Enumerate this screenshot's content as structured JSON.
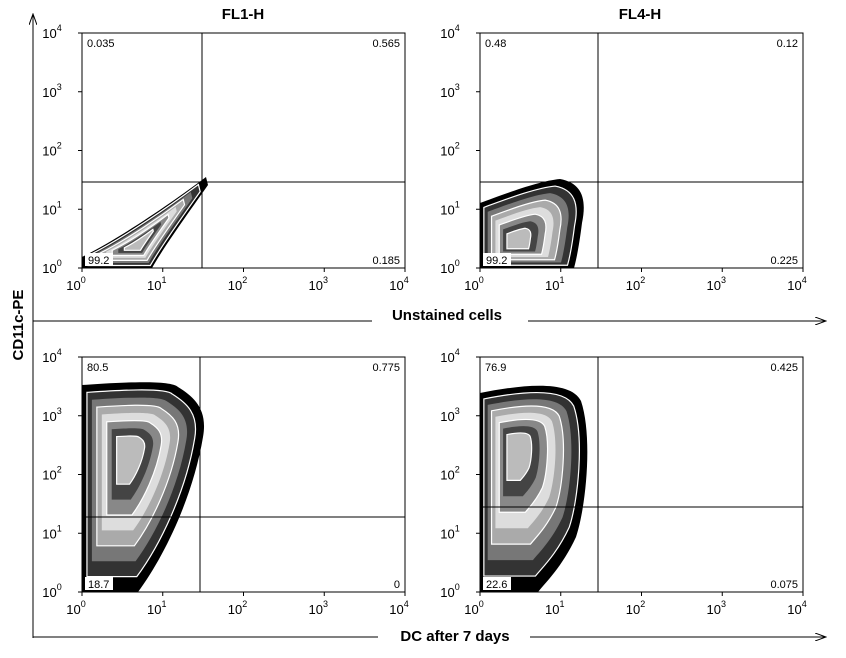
{
  "figure": {
    "column_titles": [
      "FL1-H",
      "FL4-H"
    ],
    "y_label": "CD11c-PE",
    "row_labels": [
      "Unstained cells",
      "DC after 7 days"
    ],
    "tick_base": "10",
    "tick_exponents": [
      "0",
      "1",
      "2",
      "3",
      "4"
    ],
    "panels": [
      {
        "quadrants": {
          "upper_left": "0.035",
          "upper_right": "0.565",
          "lower_left": "99.2",
          "lower_right": "0.185"
        }
      },
      {
        "quadrants": {
          "upper_left": "0.48",
          "upper_right": "0.12",
          "lower_left": "99.2",
          "lower_right": "0.225"
        }
      },
      {
        "quadrants": {
          "upper_left": "80.5",
          "upper_right": "0.775",
          "lower_left": "18.7",
          "lower_right": "0"
        }
      },
      {
        "quadrants": {
          "upper_left": "76.9",
          "upper_right": "0.425",
          "lower_left": "22.6",
          "lower_right": "0.075"
        }
      }
    ]
  }
}
